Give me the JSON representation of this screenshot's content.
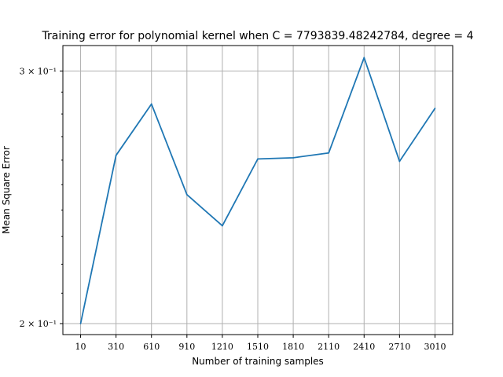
{
  "chart_data": {
    "type": "line",
    "title": "Training error for polynomial kernel when C = 7793839.48242784, degree = 4",
    "xlabel": "Number of training samples",
    "ylabel": "Mean Square Error",
    "x": [
      10,
      310,
      610,
      910,
      1210,
      1510,
      1810,
      2110,
      2410,
      2710,
      3010
    ],
    "series": [
      {
        "values": [
          0.2,
          0.262,
          0.2845,
          0.246,
          0.234,
          0.2605,
          0.261,
          0.263,
          0.3065,
          0.2595,
          0.2825
        ],
        "color": "#1f77b4"
      }
    ],
    "xticks": [
      "10",
      "310",
      "610",
      "910",
      "1210",
      "1510",
      "1810",
      "2110",
      "2410",
      "2710",
      "3010"
    ],
    "yscale": "log",
    "yticks": [
      {
        "value": 0.2,
        "label": "2 × 10⁻¹"
      },
      {
        "value": 0.3,
        "label": "3 × 10⁻¹"
      }
    ],
    "xlim": [
      -140,
      3160
    ],
    "ylim": [
      0.1965,
      0.3125
    ],
    "grid": true
  }
}
